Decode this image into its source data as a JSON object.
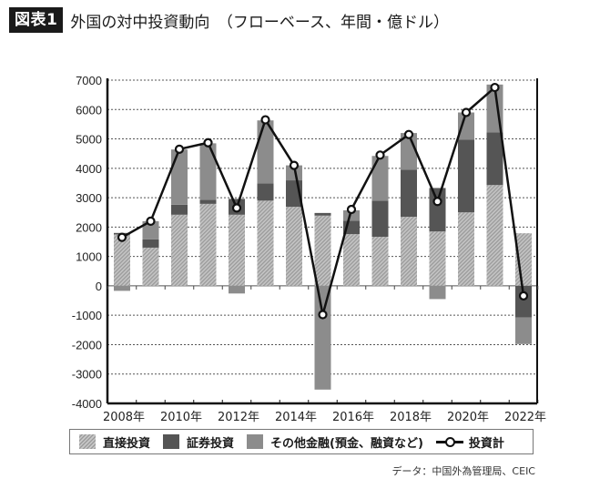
{
  "header": {
    "badge": "図表1",
    "title": "外国の対中投資動向　（フローベース、年間・億ドル）"
  },
  "legend": {
    "items": [
      {
        "key": "direct",
        "label": "直接投資"
      },
      {
        "key": "portfolio",
        "label": "証券投資"
      },
      {
        "key": "other",
        "label": "その他金融(預金、融資など)"
      },
      {
        "key": "total",
        "label": "投資計"
      }
    ]
  },
  "source": "データ：中国外為管理局、CEIC",
  "colors": {
    "direct_light": "#c8c8c8",
    "direct_dark": "#9c9c9c",
    "portfolio": "#555555",
    "other": "#8c8c8c",
    "line": "#111111",
    "grid": "#555555"
  },
  "chart_data": {
    "type": "bar",
    "subtype": "stacked bar with line overlay",
    "title": "外国の対中投資動向（フローベース、年間・億ドル）",
    "xlabel": "",
    "ylabel": "億ドル",
    "ylim": [
      -4000,
      7000
    ],
    "yticks": [
      7000,
      6000,
      5000,
      4000,
      3000,
      2000,
      1000,
      0,
      -1000,
      -2000,
      -3000,
      -4000
    ],
    "grid": "horizontal dotted",
    "legend_position": "bottom",
    "categories": [
      "2008",
      "2009",
      "2010",
      "2011",
      "2012",
      "2013",
      "2014",
      "2015",
      "2016",
      "2017",
      "2018",
      "2019",
      "2020",
      "2021",
      "2022"
    ],
    "xtick_labels": [
      "2008年",
      "2010年",
      "2012年",
      "2014年",
      "2016年",
      "2018年",
      "2020年",
      "2022年"
    ],
    "series": [
      {
        "name": "直接投資",
        "type": "bar",
        "values": [
          1750,
          1300,
          2420,
          2790,
          2420,
          2900,
          2690,
          2390,
          1760,
          1670,
          2350,
          1850,
          2500,
          3430,
          1790
        ]
      },
      {
        "name": "証券投資",
        "type": "bar",
        "values": [
          50,
          280,
          340,
          140,
          540,
          590,
          900,
          90,
          460,
          1230,
          1600,
          1480,
          2470,
          1790,
          -1080
        ]
      },
      {
        "name": "その他金融(預金、融資など)",
        "type": "bar",
        "values": [
          -170,
          620,
          1880,
          1920,
          -260,
          2140,
          510,
          -3530,
          350,
          1520,
          1250,
          -450,
          930,
          1630,
          -900
        ]
      },
      {
        "name": "投資計",
        "type": "line",
        "values": [
          1650,
          2200,
          4650,
          4870,
          2650,
          5650,
          4100,
          -980,
          2600,
          4450,
          5150,
          2870,
          5900,
          6750,
          -340
        ]
      }
    ]
  }
}
